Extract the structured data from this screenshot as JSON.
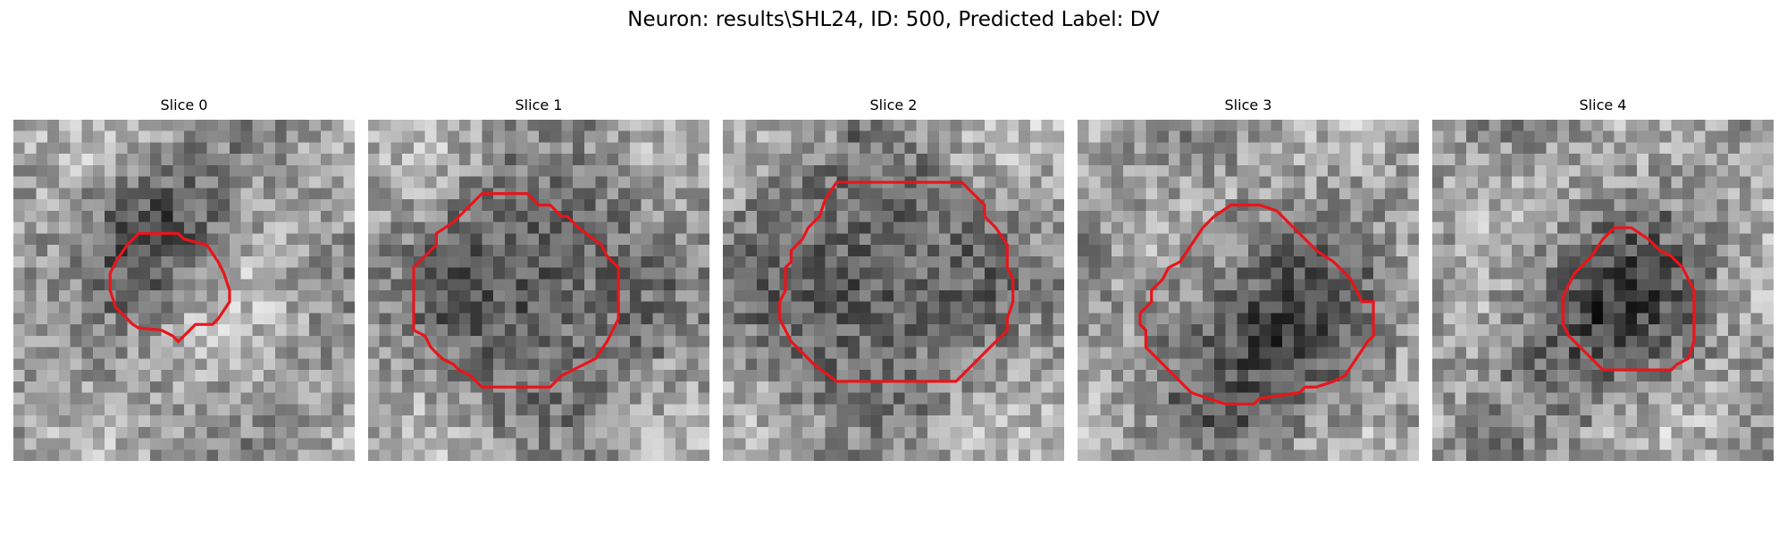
{
  "figure": {
    "title": "Neuron: results\\SHL24, ID: 500, Predicted Label: DV"
  },
  "panels": [
    {
      "title": "Slice 0",
      "seed": 11,
      "dark_center": [
        0.43,
        0.33
      ],
      "dark_radius": 0.2
    },
    {
      "title": "Slice 1",
      "seed": 23,
      "dark_center": [
        0.5,
        0.5
      ],
      "dark_radius": 0.34
    },
    {
      "title": "Slice 2",
      "seed": 37,
      "dark_center": [
        0.43,
        0.47
      ],
      "dark_radius": 0.36
    },
    {
      "title": "Slice 3",
      "seed": 51,
      "dark_center": [
        0.55,
        0.63
      ],
      "dark_radius": 0.33
    },
    {
      "title": "Slice 4",
      "seed": 67,
      "dark_center": [
        0.5,
        0.57
      ],
      "dark_radius": 0.28
    }
  ],
  "style": {
    "contour_color": "#e8151b",
    "colormap": "gray"
  }
}
